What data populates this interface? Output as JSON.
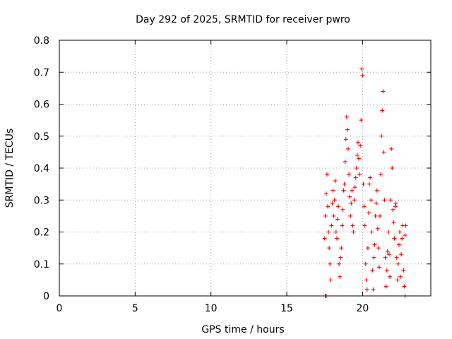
{
  "colors": {
    "series": "#ff0000",
    "grid": "#a0a0a0",
    "frame": "#000000"
  },
  "chart_data": {
    "type": "scatter",
    "title": "Day 292 of 2025, SRMTID for receiver pwro",
    "xlabel": "GPS time / hours",
    "ylabel": "SRMTID / TECUs",
    "xlim": [
      0,
      24.5
    ],
    "ylim": [
      0,
      0.8
    ],
    "xticks": [
      0,
      5,
      10,
      15,
      20
    ],
    "xtick_labels": [
      "0",
      "5",
      "10",
      "15",
      "20"
    ],
    "yticks": [
      0,
      0.1,
      0.2,
      0.3,
      0.4,
      0.5,
      0.6,
      0.7,
      0.8
    ],
    "ytick_labels": [
      "0",
      "0.1",
      "0.2",
      "0.3",
      "0.4",
      "0.5",
      "0.6",
      "0.7",
      "0.8"
    ],
    "grid": true,
    "marker": "plus",
    "series": [
      {
        "name": "SRMTID",
        "points": [
          [
            17.55,
            0.0
          ],
          [
            17.6,
            0.0
          ],
          [
            22.8,
            0.0
          ],
          [
            17.5,
            0.18
          ],
          [
            17.55,
            0.25
          ],
          [
            17.6,
            0.32
          ],
          [
            17.65,
            0.38
          ],
          [
            17.7,
            0.28
          ],
          [
            17.75,
            0.2
          ],
          [
            17.8,
            0.15
          ],
          [
            17.85,
            0.1
          ],
          [
            17.9,
            0.05
          ],
          [
            17.95,
            0.22
          ],
          [
            18.0,
            0.29
          ],
          [
            18.05,
            0.33
          ],
          [
            18.1,
            0.25
          ],
          [
            18.15,
            0.3
          ],
          [
            18.2,
            0.36
          ],
          [
            18.25,
            0.2
          ],
          [
            18.3,
            0.18
          ],
          [
            18.35,
            0.24
          ],
          [
            18.4,
            0.28
          ],
          [
            18.45,
            0.1
          ],
          [
            18.5,
            0.06
          ],
          [
            18.55,
            0.12
          ],
          [
            18.6,
            0.15
          ],
          [
            18.65,
            0.22
          ],
          [
            18.7,
            0.27
          ],
          [
            18.75,
            0.33
          ],
          [
            18.8,
            0.35
          ],
          [
            18.85,
            0.42
          ],
          [
            18.9,
            0.49
          ],
          [
            18.95,
            0.56
          ],
          [
            19.0,
            0.52
          ],
          [
            19.05,
            0.46
          ],
          [
            19.1,
            0.38
          ],
          [
            19.15,
            0.31
          ],
          [
            19.2,
            0.25
          ],
          [
            19.25,
            0.29
          ],
          [
            19.3,
            0.33
          ],
          [
            19.35,
            0.22
          ],
          [
            19.4,
            0.2
          ],
          [
            19.45,
            0.3
          ],
          [
            19.5,
            0.34
          ],
          [
            19.55,
            0.37
          ],
          [
            19.6,
            0.4
          ],
          [
            19.65,
            0.44
          ],
          [
            19.7,
            0.48
          ],
          [
            19.75,
            0.43
          ],
          [
            19.8,
            0.38
          ],
          [
            19.85,
            0.47
          ],
          [
            19.9,
            0.55
          ],
          [
            19.95,
            0.71
          ],
          [
            20.0,
            0.69
          ],
          [
            20.05,
            0.35
          ],
          [
            20.1,
            0.28
          ],
          [
            20.15,
            0.22
          ],
          [
            20.2,
            0.1
          ],
          [
            20.25,
            0.05
          ],
          [
            20.3,
            0.02
          ],
          [
            20.35,
            0.15
          ],
          [
            20.4,
            0.26
          ],
          [
            20.45,
            0.35
          ],
          [
            20.5,
            0.37
          ],
          [
            20.55,
            0.3
          ],
          [
            20.6,
            0.2
          ],
          [
            20.65,
            0.08
          ],
          [
            20.7,
            0.02
          ],
          [
            20.75,
            0.12
          ],
          [
            20.8,
            0.16
          ],
          [
            20.85,
            0.25
          ],
          [
            20.9,
            0.29
          ],
          [
            20.95,
            0.33
          ],
          [
            21.0,
            0.21
          ],
          [
            21.05,
            0.15
          ],
          [
            21.1,
            0.09
          ],
          [
            21.15,
            0.25
          ],
          [
            21.2,
            0.38
          ],
          [
            21.25,
            0.5
          ],
          [
            21.3,
            0.58
          ],
          [
            21.35,
            0.64
          ],
          [
            21.4,
            0.45
          ],
          [
            21.45,
            0.3
          ],
          [
            21.5,
            0.12
          ],
          [
            21.55,
            0.03
          ],
          [
            21.6,
            0.08
          ],
          [
            21.65,
            0.14
          ],
          [
            21.7,
            0.2
          ],
          [
            21.75,
            0.13
          ],
          [
            21.8,
            0.06
          ],
          [
            21.85,
            0.3
          ],
          [
            21.9,
            0.46
          ],
          [
            21.95,
            0.4
          ],
          [
            22.0,
            0.27
          ],
          [
            22.05,
            0.23
          ],
          [
            22.1,
            0.18
          ],
          [
            22.15,
            0.28
          ],
          [
            22.2,
            0.29
          ],
          [
            22.25,
            0.12
          ],
          [
            22.3,
            0.05
          ],
          [
            22.35,
            0.1
          ],
          [
            22.4,
            0.16
          ],
          [
            22.45,
            0.2
          ],
          [
            22.5,
            0.06
          ],
          [
            22.55,
            0.13
          ],
          [
            22.6,
            0.18
          ],
          [
            22.65,
            0.22
          ],
          [
            22.7,
            0.08
          ],
          [
            22.75,
            0.03
          ],
          [
            22.8,
            0.19
          ],
          [
            22.85,
            0.22
          ]
        ]
      }
    ]
  }
}
